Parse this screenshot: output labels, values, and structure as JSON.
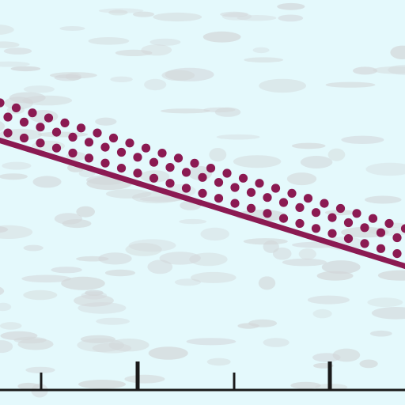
{
  "colors": {
    "background": "#e4f9fc",
    "texture": "#d2d6d8",
    "primary": "#8b1a52",
    "axis": "#1a1a1a"
  },
  "scene": {
    "elements": [
      "paper-texture",
      "diagonal-line",
      "dot-band",
      "baseline",
      "ruler-ticks"
    ]
  }
}
